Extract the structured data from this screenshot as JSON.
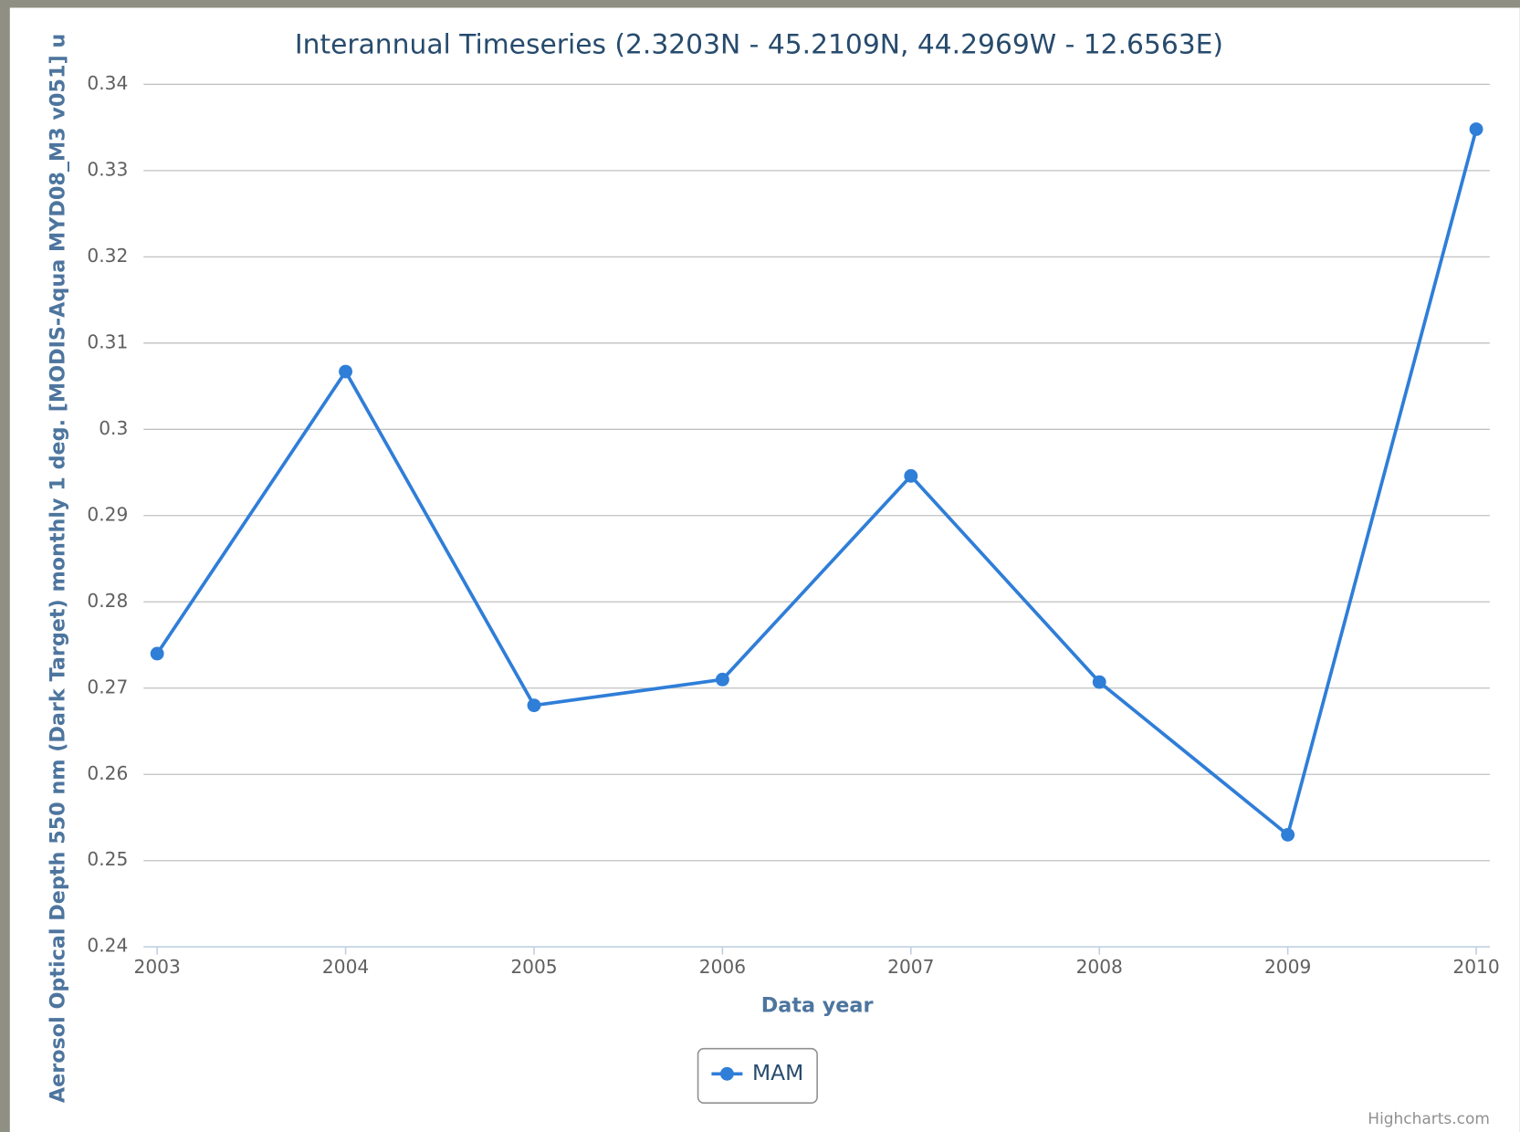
{
  "chart_data": {
    "type": "line",
    "title": "Interannual Timeseries (2.3203N - 45.2109N, 44.2969W - 12.6563E)",
    "x_label": "Data year",
    "y_label": "Aerosol Optical Depth 550 nm (Dark Target) monthly 1 deg. [MODIS-Aqua MYD08_M3 v051] u",
    "x": [
      2003,
      2004,
      2005,
      2006,
      2007,
      2008,
      2009,
      2010
    ],
    "series": [
      {
        "name": "MAM",
        "color": "#2f7ed8",
        "values": [
          0.274,
          0.3067,
          0.268,
          0.271,
          0.2946,
          0.2707,
          0.253,
          0.3348
        ]
      }
    ],
    "ylim": [
      0.24,
      0.34
    ],
    "yticks": [
      0.24,
      0.25,
      0.26,
      0.27,
      0.28,
      0.29,
      0.3,
      0.31,
      0.32,
      0.33,
      0.34
    ],
    "grid": true,
    "legend": "bottom",
    "credits": "Highcharts.com"
  }
}
